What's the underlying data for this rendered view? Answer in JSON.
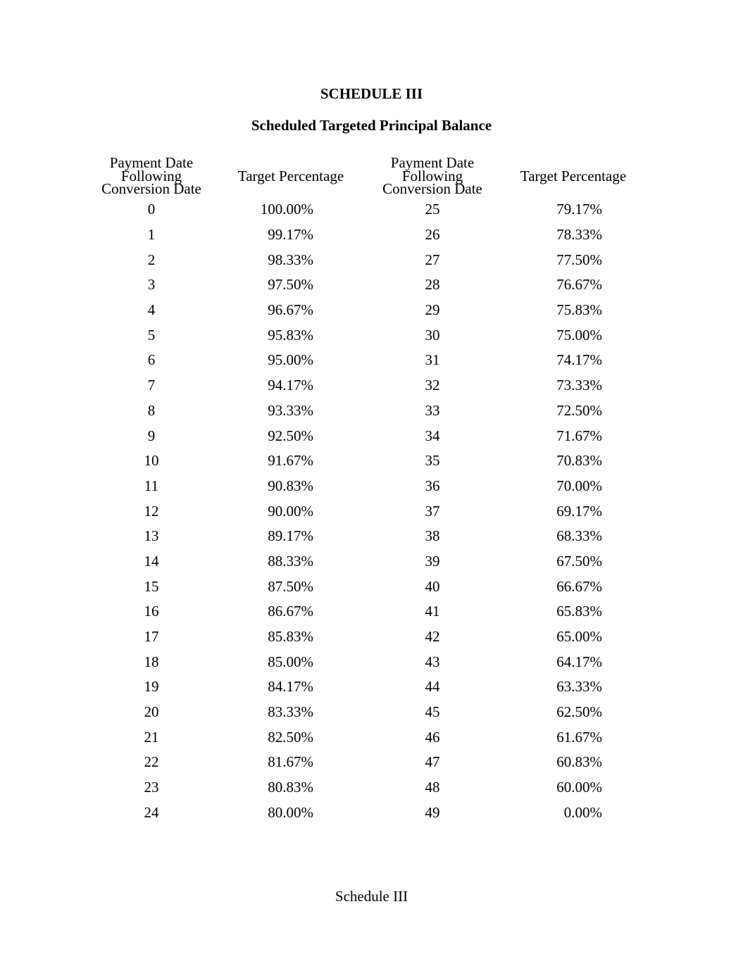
{
  "document": {
    "title": "SCHEDULE III",
    "subtitle": "Scheduled Targeted Principal Balance",
    "footer": "Schedule III"
  },
  "table": {
    "headers": {
      "payment_date_lines": [
        "Payment Date",
        "Following",
        "Conversion Date"
      ],
      "target_percentage_left": "Target Percentage",
      "target_percentage_right": "Target Percentage"
    },
    "rows": [
      {
        "payment_date_left": "0",
        "target_pct_left": "100.00%",
        "payment_date_right": "25",
        "target_pct_right": "79.17%"
      },
      {
        "payment_date_left": "1",
        "target_pct_left": "99.17%",
        "payment_date_right": "26",
        "target_pct_right": "78.33%"
      },
      {
        "payment_date_left": "2",
        "target_pct_left": "98.33%",
        "payment_date_right": "27",
        "target_pct_right": "77.50%"
      },
      {
        "payment_date_left": "3",
        "target_pct_left": "97.50%",
        "payment_date_right": "28",
        "target_pct_right": "76.67%"
      },
      {
        "payment_date_left": "4",
        "target_pct_left": "96.67%",
        "payment_date_right": "29",
        "target_pct_right": "75.83%"
      },
      {
        "payment_date_left": "5",
        "target_pct_left": "95.83%",
        "payment_date_right": "30",
        "target_pct_right": "75.00%"
      },
      {
        "payment_date_left": "6",
        "target_pct_left": "95.00%",
        "payment_date_right": "31",
        "target_pct_right": "74.17%"
      },
      {
        "payment_date_left": "7",
        "target_pct_left": "94.17%",
        "payment_date_right": "32",
        "target_pct_right": "73.33%"
      },
      {
        "payment_date_left": "8",
        "target_pct_left": "93.33%",
        "payment_date_right": "33",
        "target_pct_right": "72.50%"
      },
      {
        "payment_date_left": "9",
        "target_pct_left": "92.50%",
        "payment_date_right": "34",
        "target_pct_right": "71.67%"
      },
      {
        "payment_date_left": "10",
        "target_pct_left": "91.67%",
        "payment_date_right": "35",
        "target_pct_right": "70.83%"
      },
      {
        "payment_date_left": "11",
        "target_pct_left": "90.83%",
        "payment_date_right": "36",
        "target_pct_right": "70.00%"
      },
      {
        "payment_date_left": "12",
        "target_pct_left": "90.00%",
        "payment_date_right": "37",
        "target_pct_right": "69.17%"
      },
      {
        "payment_date_left": "13",
        "target_pct_left": "89.17%",
        "payment_date_right": "38",
        "target_pct_right": "68.33%"
      },
      {
        "payment_date_left": "14",
        "target_pct_left": "88.33%",
        "payment_date_right": "39",
        "target_pct_right": "67.50%"
      },
      {
        "payment_date_left": "15",
        "target_pct_left": "87.50%",
        "payment_date_right": "40",
        "target_pct_right": "66.67%"
      },
      {
        "payment_date_left": "16",
        "target_pct_left": "86.67%",
        "payment_date_right": "41",
        "target_pct_right": "65.83%"
      },
      {
        "payment_date_left": "17",
        "target_pct_left": "85.83%",
        "payment_date_right": "42",
        "target_pct_right": "65.00%"
      },
      {
        "payment_date_left": "18",
        "target_pct_left": "85.00%",
        "payment_date_right": "43",
        "target_pct_right": "64.17%"
      },
      {
        "payment_date_left": "19",
        "target_pct_left": "84.17%",
        "payment_date_right": "44",
        "target_pct_right": "63.33%"
      },
      {
        "payment_date_left": "20",
        "target_pct_left": "83.33%",
        "payment_date_right": "45",
        "target_pct_right": "62.50%"
      },
      {
        "payment_date_left": "21",
        "target_pct_left": "82.50%",
        "payment_date_right": "46",
        "target_pct_right": "61.67%"
      },
      {
        "payment_date_left": "22",
        "target_pct_left": "81.67%",
        "payment_date_right": "47",
        "target_pct_right": "60.83%"
      },
      {
        "payment_date_left": "23",
        "target_pct_left": "80.83%",
        "payment_date_right": "48",
        "target_pct_right": "60.00%"
      },
      {
        "payment_date_left": "24",
        "target_pct_left": "80.00%",
        "payment_date_right": "49",
        "target_pct_right": "0.00%"
      }
    ]
  }
}
